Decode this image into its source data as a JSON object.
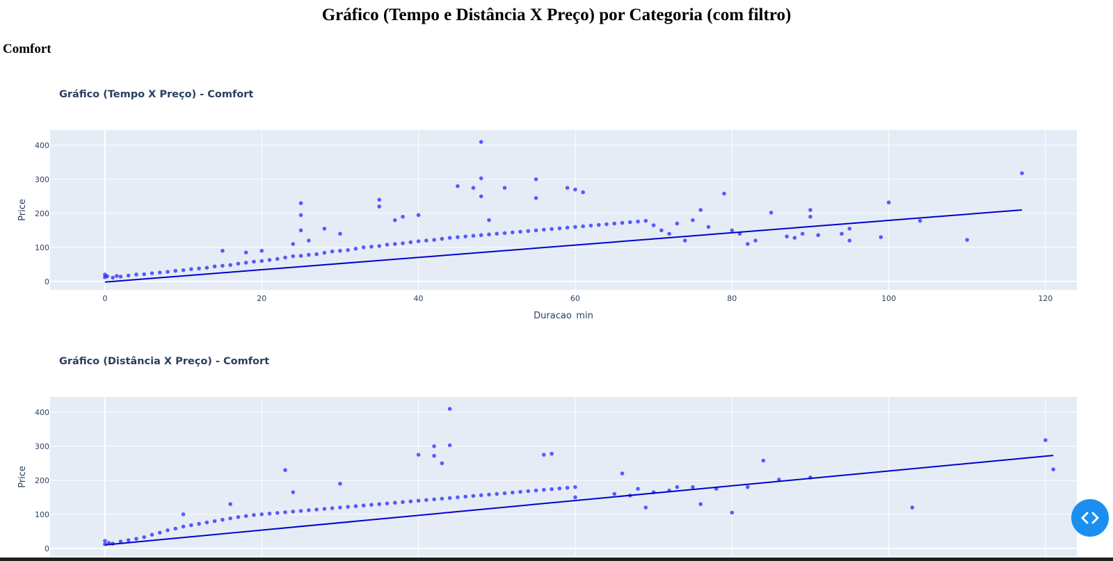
{
  "page": {
    "title": "Gráfico (Tempo e Distância X Preço) por Categoria (com filtro)",
    "category": "Comfort"
  },
  "theme": {
    "plot_bg": "#e5ecf6",
    "grid": "#ffffff",
    "point_color": "#0000ff",
    "trend_color": "#0000cc",
    "text_color": "#2a3f5f",
    "button_color": "#1a8ff0"
  },
  "icons": {
    "code_toggle": "code-brackets-icon"
  },
  "chart_data": [
    {
      "type": "scatter",
      "title": "Gráfico (Tempo X Preço) - Comfort",
      "xlabel": "Duracao_min",
      "ylabel": "Price",
      "xlim": [
        -7,
        124
      ],
      "ylim": [
        -25,
        445
      ],
      "xticks": [
        0,
        20,
        40,
        60,
        80,
        100,
        120
      ],
      "yticks": [
        0,
        100,
        200,
        300,
        400
      ],
      "grid": true,
      "trendline": {
        "x": [
          0,
          117
        ],
        "y": [
          -2,
          210
        ]
      },
      "series": [
        {
          "points": [
            [
              0,
              12
            ],
            [
              0,
              20
            ],
            [
              0.3,
              15
            ],
            [
              1,
              11
            ],
            [
              1.5,
              16
            ],
            [
              2,
              14
            ],
            [
              3,
              17
            ],
            [
              4,
              20
            ],
            [
              5,
              21
            ],
            [
              6,
              24
            ],
            [
              7,
              26
            ],
            [
              8,
              28
            ],
            [
              9,
              31
            ],
            [
              10,
              33
            ],
            [
              11,
              36
            ],
            [
              12,
              38
            ],
            [
              13,
              40
            ],
            [
              14,
              44
            ],
            [
              15,
              46
            ],
            [
              15,
              90
            ],
            [
              16,
              48
            ],
            [
              17,
              52
            ],
            [
              18,
              55
            ],
            [
              18,
              85
            ],
            [
              19,
              58
            ],
            [
              20,
              60
            ],
            [
              20,
              90
            ],
            [
              21,
              63
            ],
            [
              22,
              66
            ],
            [
              23,
              70
            ],
            [
              24,
              74
            ],
            [
              24,
              110
            ],
            [
              25,
              75
            ],
            [
              25,
              150
            ],
            [
              25,
              195
            ],
            [
              25,
              230
            ],
            [
              26,
              78
            ],
            [
              26,
              120
            ],
            [
              27,
              80
            ],
            [
              28,
              84
            ],
            [
              28,
              155
            ],
            [
              29,
              88
            ],
            [
              30,
              90
            ],
            [
              30,
              140
            ],
            [
              31,
              92
            ],
            [
              32,
              96
            ],
            [
              33,
              100
            ],
            [
              34,
              102
            ],
            [
              35,
              104
            ],
            [
              35,
              220
            ],
            [
              35,
              240
            ],
            [
              36,
              108
            ],
            [
              37,
              110
            ],
            [
              37,
              180
            ],
            [
              38,
              112
            ],
            [
              38,
              190
            ],
            [
              39,
              115
            ],
            [
              40,
              118
            ],
            [
              40,
              195
            ],
            [
              41,
              120
            ],
            [
              42,
              122
            ],
            [
              43,
              125
            ],
            [
              44,
              128
            ],
            [
              45,
              130
            ],
            [
              45,
              280
            ],
            [
              46,
              132
            ],
            [
              47,
              134
            ],
            [
              47,
              275
            ],
            [
              48,
              136
            ],
            [
              48,
              410
            ],
            [
              48,
              303
            ],
            [
              48,
              250
            ],
            [
              49,
              138
            ],
            [
              49,
              180
            ],
            [
              50,
              140
            ],
            [
              51,
              142
            ],
            [
              51,
              275
            ],
            [
              52,
              144
            ],
            [
              53,
              146
            ],
            [
              54,
              148
            ],
            [
              55,
              150
            ],
            [
              55,
              300
            ],
            [
              55,
              245
            ],
            [
              56,
              152
            ],
            [
              57,
              154
            ],
            [
              58,
              156
            ],
            [
              59,
              158
            ],
            [
              59,
              275
            ],
            [
              60,
              160
            ],
            [
              60,
              270
            ],
            [
              61,
              162
            ],
            [
              61,
              262
            ],
            [
              62,
              164
            ],
            [
              63,
              166
            ],
            [
              64,
              168
            ],
            [
              65,
              170
            ],
            [
              66,
              172
            ],
            [
              67,
              174
            ],
            [
              68,
              176
            ],
            [
              69,
              178
            ],
            [
              70,
              165
            ],
            [
              71,
              150
            ],
            [
              72,
              140
            ],
            [
              73,
              170
            ],
            [
              74,
              120
            ],
            [
              75,
              180
            ],
            [
              76,
              210
            ],
            [
              77,
              160
            ],
            [
              79,
              258
            ],
            [
              80,
              150
            ],
            [
              81,
              140
            ],
            [
              82,
              110
            ],
            [
              83,
              120
            ],
            [
              85,
              202
            ],
            [
              87,
              132
            ],
            [
              88,
              128
            ],
            [
              89,
              140
            ],
            [
              90,
              210
            ],
            [
              90,
              190
            ],
            [
              91,
              136
            ],
            [
              94,
              140
            ],
            [
              95,
              155
            ],
            [
              95,
              120
            ],
            [
              99,
              130
            ],
            [
              100,
              232
            ],
            [
              104,
              178
            ],
            [
              110,
              122
            ],
            [
              117,
              318
            ]
          ]
        }
      ]
    },
    {
      "type": "scatter",
      "title": "Gráfico (Distância X Preço) - Comfort",
      "xlabel": "",
      "ylabel": "Price",
      "xlim": [
        -7,
        124
      ],
      "ylim": [
        -25,
        445
      ],
      "xticks": [
        0,
        20,
        40,
        60,
        80,
        100,
        120
      ],
      "yticks": [
        0,
        100,
        200,
        300,
        400
      ],
      "grid": true,
      "trendline": {
        "x": [
          0,
          121
        ],
        "y": [
          10,
          273
        ]
      },
      "series": [
        {
          "points": [
            [
              0,
              12
            ],
            [
              0,
              22
            ],
            [
              0.5,
              16
            ],
            [
              1,
              14
            ],
            [
              2,
              20
            ],
            [
              3,
              24
            ],
            [
              4,
              28
            ],
            [
              5,
              33
            ],
            [
              6,
              40
            ],
            [
              7,
              46
            ],
            [
              8,
              53
            ],
            [
              9,
              58
            ],
            [
              10,
              64
            ],
            [
              10,
              100
            ],
            [
              11,
              68
            ],
            [
              12,
              72
            ],
            [
              13,
              76
            ],
            [
              14,
              80
            ],
            [
              15,
              84
            ],
            [
              16,
              88
            ],
            [
              16,
              130
            ],
            [
              17,
              92
            ],
            [
              18,
              95
            ],
            [
              19,
              98
            ],
            [
              20,
              100
            ],
            [
              21,
              102
            ],
            [
              22,
              104
            ],
            [
              23,
              106
            ],
            [
              23,
              230
            ],
            [
              24,
              108
            ],
            [
              24,
              165
            ],
            [
              25,
              110
            ],
            [
              26,
              112
            ],
            [
              27,
              114
            ],
            [
              28,
              116
            ],
            [
              29,
              118
            ],
            [
              30,
              120
            ],
            [
              30,
              190
            ],
            [
              31,
              122
            ],
            [
              32,
              124
            ],
            [
              33,
              126
            ],
            [
              34,
              128
            ],
            [
              35,
              130
            ],
            [
              36,
              132
            ],
            [
              37,
              134
            ],
            [
              38,
              136
            ],
            [
              39,
              138
            ],
            [
              40,
              140
            ],
            [
              40,
              275
            ],
            [
              41,
              142
            ],
            [
              42,
              144
            ],
            [
              42,
              272
            ],
            [
              42,
              300
            ],
            [
              43,
              146
            ],
            [
              43,
              250
            ],
            [
              44,
              148
            ],
            [
              44,
              410
            ],
            [
              44,
              303
            ],
            [
              45,
              150
            ],
            [
              46,
              152
            ],
            [
              47,
              154
            ],
            [
              48,
              156
            ],
            [
              49,
              158
            ],
            [
              50,
              160
            ],
            [
              51,
              162
            ],
            [
              52,
              164
            ],
            [
              53,
              166
            ],
            [
              54,
              168
            ],
            [
              55,
              170
            ],
            [
              56,
              172
            ],
            [
              56,
              275
            ],
            [
              57,
              174
            ],
            [
              57,
              278
            ],
            [
              58,
              176
            ],
            [
              59,
              178
            ],
            [
              60,
              150
            ],
            [
              60,
              180
            ],
            [
              65,
              160
            ],
            [
              66,
              220
            ],
            [
              67,
              155
            ],
            [
              68,
              175
            ],
            [
              69,
              120
            ],
            [
              70,
              165
            ],
            [
              72,
              170
            ],
            [
              73,
              180
            ],
            [
              75,
              180
            ],
            [
              76,
              130
            ],
            [
              78,
              175
            ],
            [
              80,
              105
            ],
            [
              82,
              180
            ],
            [
              84,
              258
            ],
            [
              86,
              202
            ],
            [
              90,
              208
            ],
            [
              103,
              120
            ],
            [
              120,
              318
            ],
            [
              121,
              232
            ]
          ]
        }
      ]
    }
  ]
}
